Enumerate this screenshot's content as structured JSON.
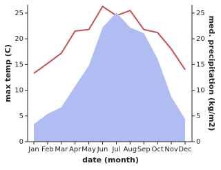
{
  "chart_data": {
    "type": "line-area",
    "x_label": "date (month)",
    "y_label": "max temp (C)",
    "y2_label": "med. precipitation (kg/m2)",
    "categories": [
      "Jan",
      "Feb",
      "Mar",
      "Apr",
      "May",
      "Jun",
      "Jul",
      "Aug",
      "Sep",
      "Oct",
      "Nov",
      "Dec"
    ],
    "series": [
      {
        "name": "max temp",
        "color": "#c9504f",
        "kind": "line",
        "values": [
          13.3,
          15.2,
          17.2,
          21.5,
          21.8,
          26.3,
          24.5,
          25.5,
          21.8,
          21.2,
          18,
          14
        ]
      },
      {
        "name": "med. precipitation",
        "color": "#b0bdf3",
        "kind": "area",
        "axis": "y2",
        "values": [
          3.4,
          5.4,
          6.7,
          10.8,
          14.8,
          22.2,
          25.1,
          22.2,
          21.1,
          16.1,
          8.7,
          4.4
        ]
      }
    ],
    "ylim": [
      0,
      26.6
    ],
    "yticks": [
      0,
      5,
      10,
      15,
      20,
      25
    ],
    "y2lim": [
      0,
      26.6
    ],
    "y2ticks": [
      0,
      5,
      10,
      15,
      20,
      25
    ]
  }
}
